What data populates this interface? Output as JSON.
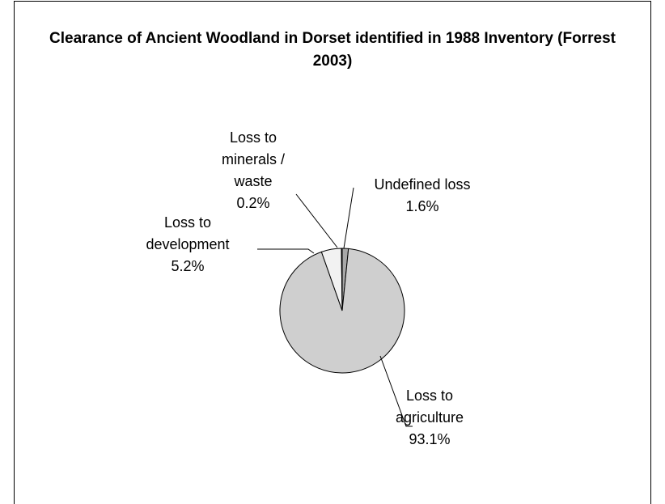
{
  "chart_data": {
    "type": "pie",
    "title": "Clearance of Ancient Woodland in Dorset identified in 1988 Inventory (Forrest 2003)",
    "categories": [
      "Undefined loss",
      "Loss to agriculture",
      "Loss to development",
      "Loss to minerals / waste"
    ],
    "values": [
      1.6,
      93.1,
      5.2,
      0.2
    ],
    "value_labels": [
      "1.6%",
      "93.1%",
      "5.2%",
      "0.2%"
    ],
    "colors": [
      "#a8a8a8",
      "#cfcfcf",
      "#f2f2f2",
      "#808080"
    ]
  }
}
